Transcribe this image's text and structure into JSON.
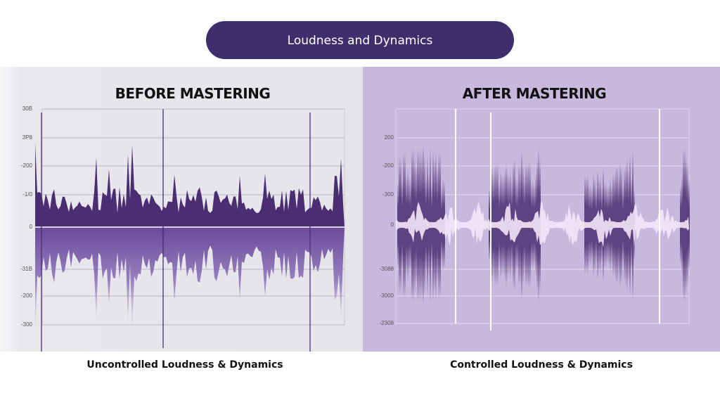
{
  "header": {
    "title": "Loudness and Dynamics"
  },
  "panels": [
    {
      "heading": "BEFORE MASTERING",
      "axis_labels": [
        "30B",
        "3P8",
        "-200",
        "-1/0",
        "0",
        "-31B",
        "-200",
        "-300"
      ],
      "caption": "Uncontrolled Loudness & Dynamics"
    },
    {
      "heading": "AFTER MASTERING",
      "axis_labels": [
        "200",
        "-200",
        "-300",
        "0",
        "-3088",
        "-3000",
        "-2308"
      ],
      "caption": "Controlled Loudness & Dynamics"
    }
  ]
}
